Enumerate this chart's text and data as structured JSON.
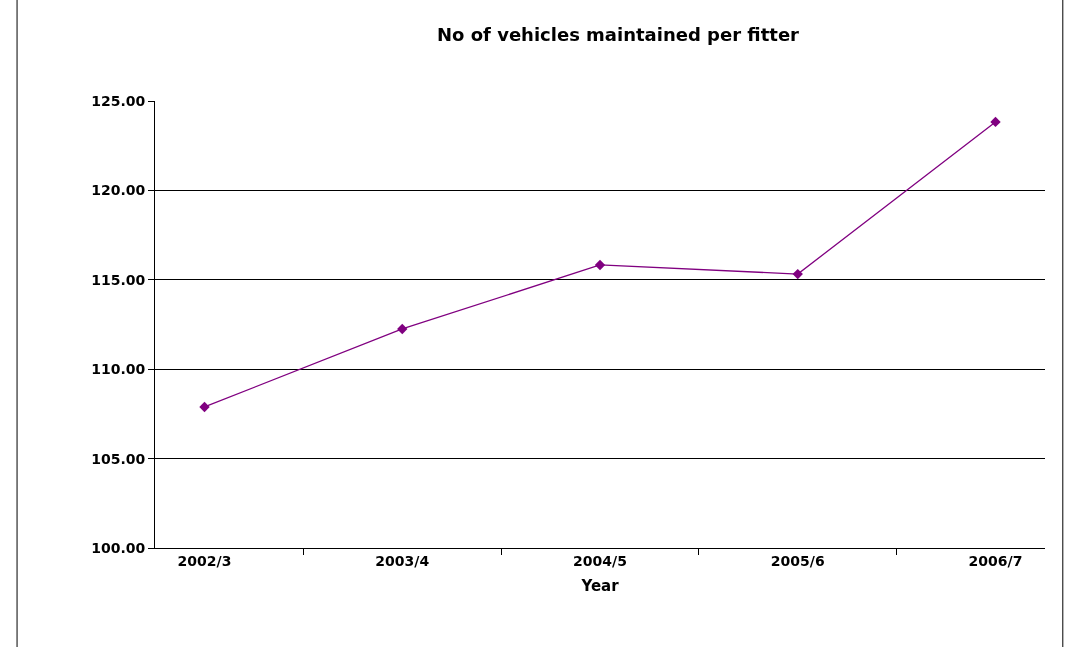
{
  "chart_data": {
    "type": "line",
    "title": "No of vehicles maintained per fitter",
    "xlabel": "Year",
    "categories": [
      "2002/3",
      "2003/4",
      "2004/5",
      "2005/6",
      "2006/7"
    ],
    "series": [
      {
        "color": "#800080",
        "values": [
          107.89,
          112.25,
          115.83,
          115.32,
          123.83
        ]
      }
    ],
    "ylim": [
      100,
      125
    ],
    "yticks": [
      {
        "value": 100,
        "label": "100.00"
      },
      {
        "value": 105,
        "label": "105.00"
      },
      {
        "value": 110,
        "label": "110.00"
      },
      {
        "value": 115,
        "label": "115.00"
      },
      {
        "value": 120,
        "label": "120.00"
      },
      {
        "value": 125,
        "label": "125.00"
      }
    ],
    "grid": "y",
    "marker": "diamond",
    "line_style": "solid"
  }
}
